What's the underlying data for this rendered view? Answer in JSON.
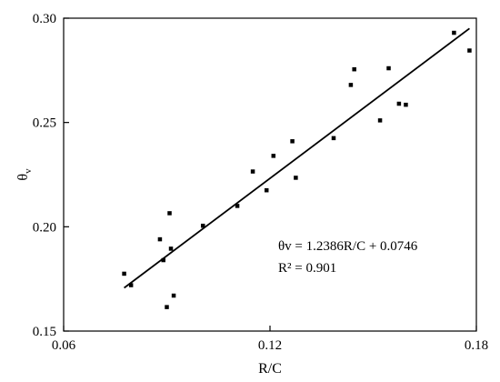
{
  "chart_data": {
    "type": "scatter",
    "xlabel": "R/C",
    "ylabel_main": "θ",
    "ylabel_sub": "v",
    "xlim": [
      0.06,
      0.18
    ],
    "ylim": [
      0.15,
      0.3
    ],
    "x_ticks": [
      0.06,
      0.12,
      0.18
    ],
    "x_tick_labels": [
      "0.06",
      "0.12",
      "0.18"
    ],
    "y_ticks": [
      0.15,
      0.2,
      0.25,
      0.3
    ],
    "y_tick_labels": [
      "0.15",
      "0.20",
      "0.25",
      "0.30"
    ],
    "grid": false,
    "marker_color": "#000000",
    "points": [
      {
        "x": 0.0776,
        "y": 0.1775
      },
      {
        "x": 0.0796,
        "y": 0.172
      },
      {
        "x": 0.088,
        "y": 0.194
      },
      {
        "x": 0.089,
        "y": 0.184
      },
      {
        "x": 0.09,
        "y": 0.1615
      },
      {
        "x": 0.0908,
        "y": 0.2065
      },
      {
        "x": 0.0912,
        "y": 0.1895
      },
      {
        "x": 0.092,
        "y": 0.167
      },
      {
        "x": 0.1005,
        "y": 0.2005
      },
      {
        "x": 0.1105,
        "y": 0.21
      },
      {
        "x": 0.115,
        "y": 0.2265
      },
      {
        "x": 0.119,
        "y": 0.2175
      },
      {
        "x": 0.121,
        "y": 0.234
      },
      {
        "x": 0.1265,
        "y": 0.241
      },
      {
        "x": 0.1275,
        "y": 0.2235
      },
      {
        "x": 0.1385,
        "y": 0.2425
      },
      {
        "x": 0.1435,
        "y": 0.268
      },
      {
        "x": 0.1445,
        "y": 0.2755
      },
      {
        "x": 0.152,
        "y": 0.251
      },
      {
        "x": 0.1545,
        "y": 0.276
      },
      {
        "x": 0.1575,
        "y": 0.259
      },
      {
        "x": 0.1595,
        "y": 0.2585
      },
      {
        "x": 0.1735,
        "y": 0.293
      },
      {
        "x": 0.178,
        "y": 0.2845
      }
    ],
    "fit": {
      "slope": 1.2386,
      "intercept": 0.0746,
      "x_range": [
        0.0776,
        0.178
      ],
      "line_color": "#000000"
    },
    "annotations": [
      "θv = 1.2386R/C + 0.0746",
      "R² = 0.901"
    ]
  }
}
